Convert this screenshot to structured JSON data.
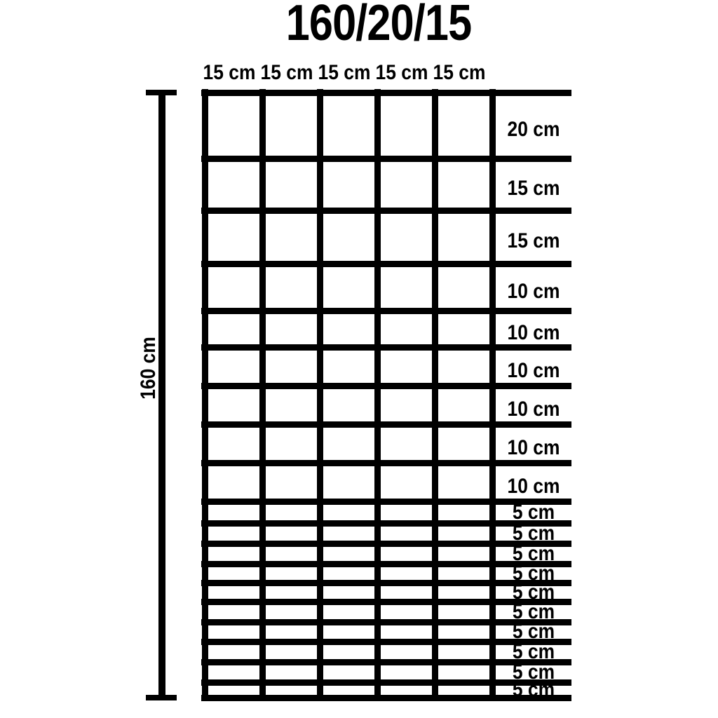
{
  "title": "160/20/15",
  "column_headers": [
    "15 cm",
    "15 cm",
    "15 cm",
    "15 cm",
    "15 cm"
  ],
  "columns_cm": [
    15,
    15,
    15,
    15,
    15
  ],
  "height_label": "160 cm",
  "total_height_cm": 160,
  "rows": [
    {
      "label": "20 cm",
      "cm": 20
    },
    {
      "label": "15 cm",
      "cm": 15
    },
    {
      "label": "15 cm",
      "cm": 15
    },
    {
      "label": "10 cm",
      "cm": 10
    },
    {
      "label": "10 cm",
      "cm": 10
    },
    {
      "label": "10 cm",
      "cm": 10
    },
    {
      "label": "10 cm",
      "cm": 10
    },
    {
      "label": "10 cm",
      "cm": 10
    },
    {
      "label": "10 cm",
      "cm": 10
    },
    {
      "label": "5 cm",
      "cm": 5
    },
    {
      "label": "5 cm",
      "cm": 5
    },
    {
      "label": "5 cm",
      "cm": 5
    },
    {
      "label": "5 cm",
      "cm": 5
    },
    {
      "label": "5 cm",
      "cm": 5
    },
    {
      "label": "5 cm",
      "cm": 5
    },
    {
      "label": "5 cm",
      "cm": 5
    },
    {
      "label": "5 cm",
      "cm": 5
    },
    {
      "label": "5 cm",
      "cm": 5
    },
    {
      "label": "5 cm",
      "cm": 5
    }
  ],
  "colors": {
    "background": "#ffffff",
    "line": "#000000",
    "text": "#000000"
  }
}
